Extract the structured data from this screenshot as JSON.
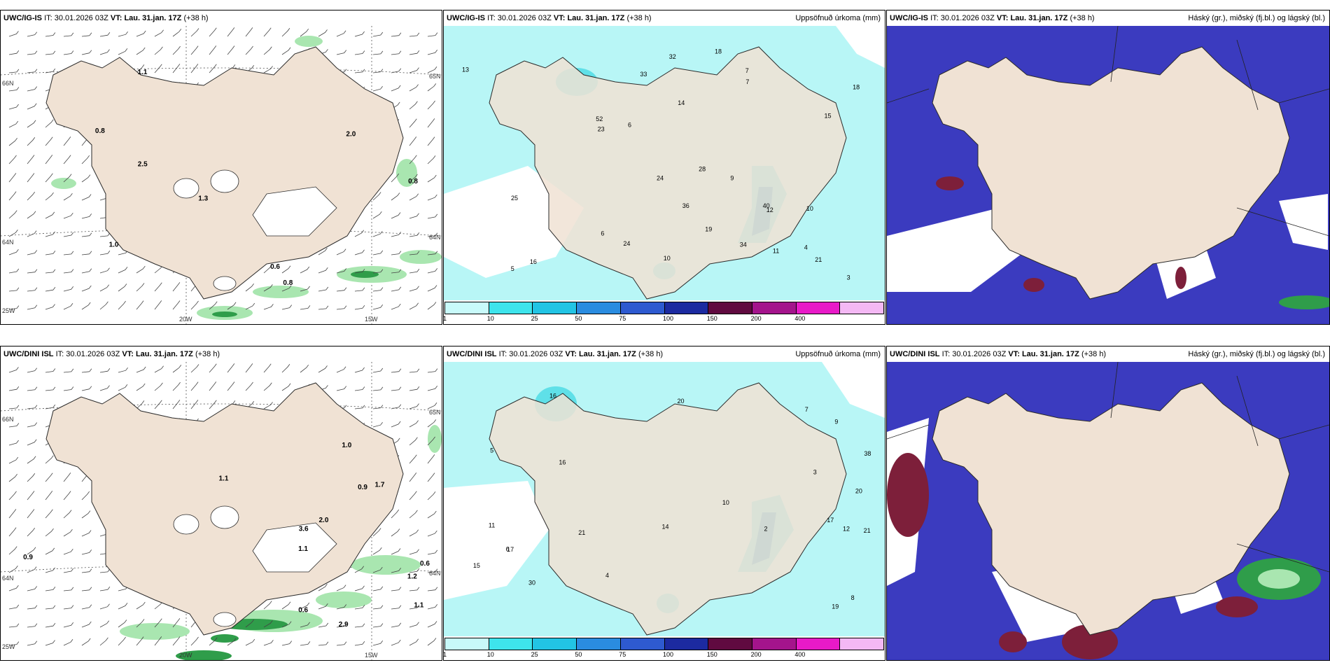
{
  "colors": {
    "land": "#f0e2d4",
    "land_stroke": "#2a2a2a",
    "precip_light": "#b8f6f6",
    "precip_mid": "#5fe0e8",
    "precip_dark": "#1aa4d0",
    "cloud_high": "#3b3bbf",
    "cloud_mid": "#6b6be0",
    "cloud_low": "#7d1f3a",
    "snow_green": "#2f9d4a",
    "snow_light": "#a9e6b0",
    "snow_purple": "#c050c8"
  },
  "panels": [
    {
      "model": "UWC/IG-IS",
      "it_label": "IT:",
      "it_value": "30.01.2026 03Z",
      "vt_label": "VT:",
      "vt_value": "Lau. 31.jan. 17Z",
      "lead": "(+38 h)",
      "right_title": "",
      "kind": "wind",
      "grid_labels": [
        "66N",
        "64N",
        "65N",
        "64N",
        "25W",
        "20W",
        "15W"
      ],
      "values": [
        "0.8",
        "1.1",
        "1.0",
        "0.8",
        "2.0",
        "0.6",
        "0.8",
        "2.5",
        "1.3"
      ]
    },
    {
      "model": "UWC/IG-IS",
      "it_label": "IT:",
      "it_value": "30.01.2026 03Z",
      "vt_label": "VT:",
      "vt_value": "Lau. 31.jan. 17Z",
      "lead": "(+38 h)",
      "right_title": "Uppsöfnuð úrkoma (mm)",
      "kind": "precip",
      "values": [
        "5",
        "10",
        "28",
        "36",
        "33",
        "18",
        "4",
        "7",
        "11",
        "6",
        "3",
        "23",
        "24",
        "32",
        "34",
        "52",
        "40",
        "25",
        "24",
        "18",
        "13",
        "16",
        "10",
        "9",
        "12",
        "7",
        "6",
        "14",
        "15",
        "19",
        "21"
      ]
    },
    {
      "model": "UWC/IG-IS",
      "it_label": "IT:",
      "it_value": "30.01.2026 03Z",
      "vt_label": "VT:",
      "vt_value": "Lau. 31.jan. 17Z",
      "lead": "(+38 h)",
      "right_title": "Háský (gr.), miðský (fj.bl.) og lágský (bl.)",
      "kind": "cloud"
    },
    {
      "model": "UWC/DINI ISL",
      "it_label": "IT:",
      "it_value": "30.01.2026 03Z",
      "vt_label": "VT:",
      "vt_value": "Lau. 31.jan. 17Z",
      "lead": "(+38 h)",
      "right_title": "",
      "kind": "wind",
      "grid_labels": [
        "66N",
        "64N",
        "65N",
        "64N",
        "25W",
        "20W",
        "15W"
      ],
      "values": [
        "1.1",
        "0.6",
        "0.9",
        "1.2",
        "0.6",
        "1.0",
        "1.7",
        "1.1",
        "1.1",
        "2.9",
        "2.0",
        "3.6",
        "0.9"
      ]
    },
    {
      "model": "UWC/DINI ISL",
      "it_label": "IT:",
      "it_value": "30.01.2026 03Z",
      "vt_label": "VT:",
      "vt_value": "Lau. 31.jan. 17Z",
      "lead": "(+38 h)",
      "right_title": "Uppsöfnuð úrkoma (mm)",
      "kind": "precip",
      "values": [
        "16",
        "17",
        "5",
        "4",
        "12",
        "20",
        "19",
        "21",
        "30",
        "16",
        "20",
        "15",
        "10",
        "38",
        "17",
        "14",
        "21",
        "11",
        "6",
        "3",
        "9",
        "7",
        "8",
        "2"
      ]
    },
    {
      "model": "UWC/DINI ISL",
      "it_label": "IT:",
      "it_value": "30.01.2026 03Z",
      "vt_label": "VT:",
      "vt_value": "Lau. 31.jan. 17Z",
      "lead": "(+38 h)",
      "right_title": "Háský (gr.), miðský (fj.bl.) og lágský (bl.)",
      "kind": "cloud"
    }
  ],
  "legend": {
    "ticks": [
      "1",
      "10",
      "25",
      "50",
      "75",
      "100",
      "150",
      "200",
      "400"
    ],
    "colors": [
      "#c8fafa",
      "#3ee4ec",
      "#22c4e4",
      "#2a8ce0",
      "#2e5ad0",
      "#1c2aa0",
      "#600a40",
      "#a4148c",
      "#e81ac8",
      "#f4b8f4"
    ]
  }
}
